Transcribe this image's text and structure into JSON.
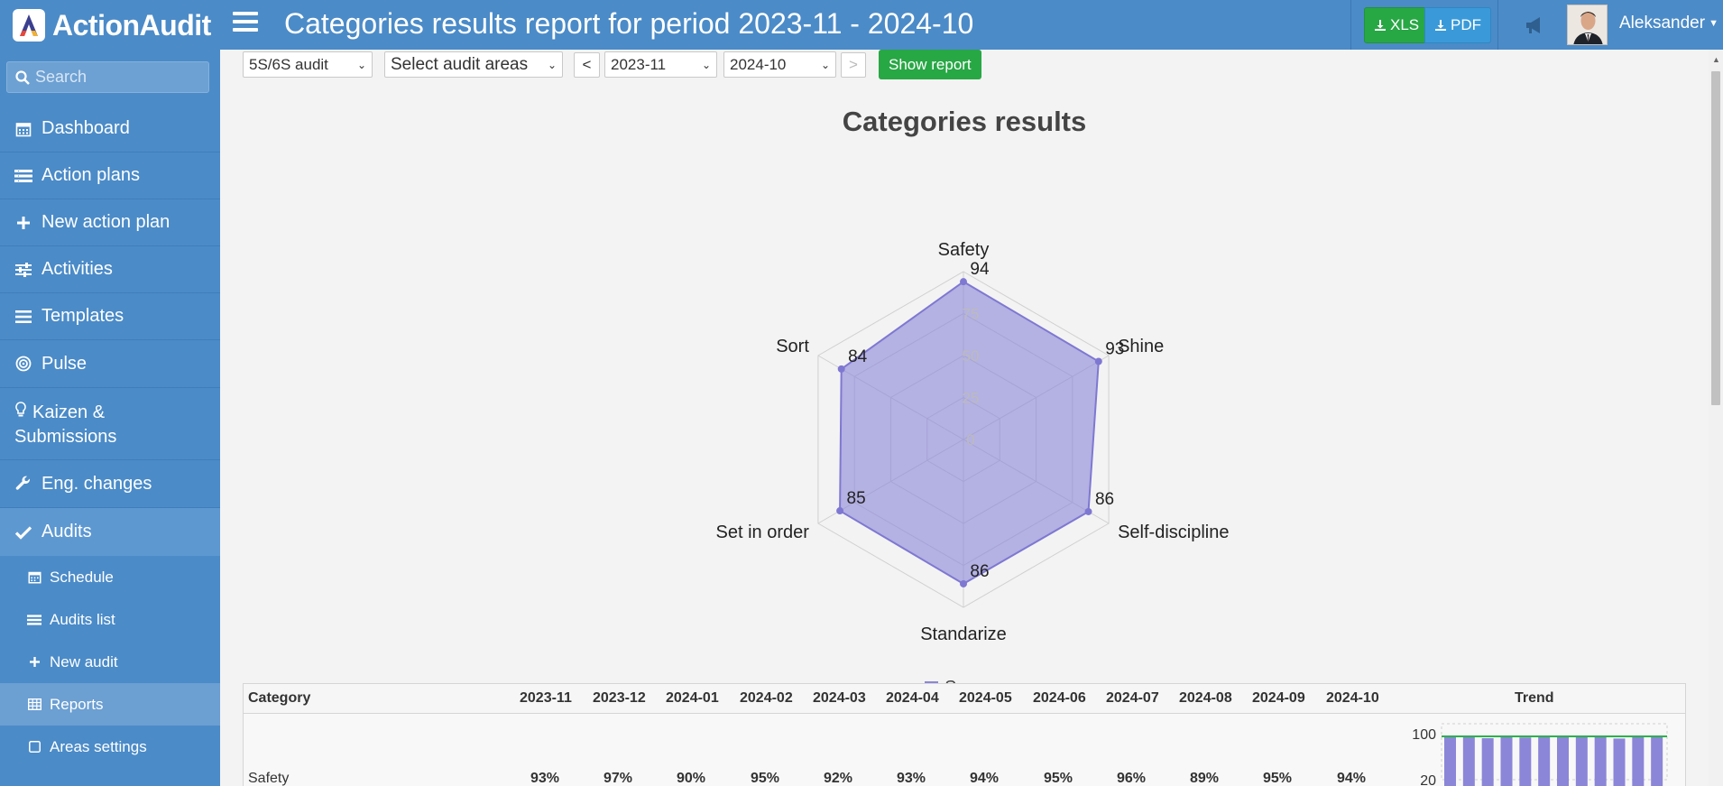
{
  "app": {
    "name": "ActionAudit"
  },
  "header": {
    "title": "Categories results report for period 2023-11 - 2024-10",
    "export_xls": "XLS",
    "export_pdf": "PDF",
    "user_name": "Aleksander"
  },
  "sidebar": {
    "search_placeholder": "Search",
    "items": [
      {
        "label": "Dashboard",
        "icon": "calendar-icon"
      },
      {
        "label": "Action plans",
        "icon": "list-icon"
      },
      {
        "label": "New action plan",
        "icon": "plus-icon"
      },
      {
        "label": "Activities",
        "icon": "sliders-icon"
      },
      {
        "label": "Templates",
        "icon": "bars-icon"
      },
      {
        "label": "Pulse",
        "icon": "target-icon"
      },
      {
        "label": "Kaizen &",
        "label2": "Submissions",
        "icon": "lightbulb-icon"
      },
      {
        "label": "Eng. changes",
        "icon": "wrench-icon"
      },
      {
        "label": "Audits",
        "icon": "check-icon"
      }
    ],
    "sub_items": [
      {
        "label": "Schedule",
        "icon": "calendar-icon"
      },
      {
        "label": "Audits list",
        "icon": "list-icon"
      },
      {
        "label": "New audit",
        "icon": "plus-icon"
      },
      {
        "label": "Reports",
        "icon": "table-icon"
      },
      {
        "label": "Areas settings",
        "icon": "square-icon"
      }
    ]
  },
  "filters": {
    "audit_type": "5S/6S audit",
    "audit_areas": "Select audit areas",
    "prev": "<",
    "period_from": "2023-11",
    "period_to": "2024-10",
    "next": ">",
    "show_report": "Show report"
  },
  "chart_data": {
    "type": "radar",
    "title": "Categories results",
    "categories": [
      "Safety",
      "Shine",
      "Self-discipline",
      "Standarize",
      "Set in order",
      "Sort"
    ],
    "series": [
      {
        "name": "Score",
        "values": [
          94,
          93,
          86,
          86,
          85,
          84
        ]
      }
    ],
    "rlim": [
      0,
      100
    ],
    "rticks": [
      0,
      25,
      50,
      75
    ],
    "legend": "bottom",
    "color": "#8b86d8"
  },
  "table": {
    "headers": [
      "Category",
      "2023-11",
      "2023-12",
      "2024-01",
      "2024-02",
      "2024-03",
      "2024-04",
      "2024-05",
      "2024-06",
      "2024-07",
      "2024-08",
      "2024-09",
      "2024-10",
      "Trend"
    ],
    "rows": [
      {
        "category": "Safety",
        "values": [
          "93%",
          "97%",
          "90%",
          "95%",
          "92%",
          "93%",
          "94%",
          "95%",
          "96%",
          "89%",
          "95%",
          "94%"
        ],
        "trend": [
          93,
          97,
          90,
          95,
          92,
          93,
          94,
          95,
          96,
          89,
          95,
          94
        ]
      }
    ],
    "trend_axis": [
      "100",
      "20"
    ]
  }
}
